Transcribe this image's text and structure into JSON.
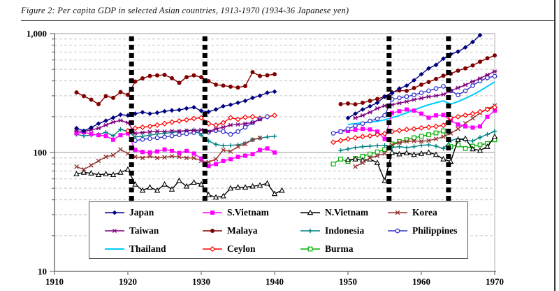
{
  "figure": {
    "title": "Figure 2: Per capita GDP in selected Asian countries, 1913-1970 (1934-36 Japanese yen)"
  },
  "chart_data": {
    "type": "line",
    "title": "Figure 2: Per capita GDP in selected Asian countries, 1913-1970 (1934-36 Japanese yen)",
    "xlabel": "",
    "ylabel": "",
    "x_axis": {
      "min": 1910,
      "max": 1970,
      "ticks": [
        1910,
        1920,
        1930,
        1940,
        1950,
        1960,
        1970
      ]
    },
    "y_axis": {
      "scale": "log",
      "min": 10,
      "max": 1000,
      "tick_values": [
        1000,
        100,
        10
      ],
      "tick_labels": [
        "1,000",
        "100",
        "10"
      ],
      "solid_line_values": [
        1000,
        100,
        10
      ],
      "minor_gridlines": [
        20,
        30,
        40,
        50,
        60,
        70,
        80,
        90,
        200,
        300,
        400,
        500,
        600,
        700,
        800,
        900
      ]
    },
    "period_break_bars": {
      "style": "thick-dashed-vertical",
      "color": "#000000",
      "years": [
        1920.5,
        1930.5,
        1955.6,
        1963.7
      ]
    },
    "legend": {
      "position": "bottom-inside",
      "rows": [
        [
          "Japan",
          "S.Vietnam",
          "N.Vietnam",
          "Korea"
        ],
        [
          "Taiwan",
          "Malaya",
          "Indonesia",
          "Philippines"
        ],
        [
          "Thailand",
          "Ceylon",
          "Burma"
        ]
      ]
    },
    "series": [
      {
        "name": "Japan",
        "color": "#000080",
        "marker": "diamond",
        "segments": [
          {
            "start_year": 1913,
            "values": [
              160,
              152,
              162,
              175,
              185,
              196,
              208,
              205,
              212,
              218,
              212,
              216,
              222,
              226,
              228,
              235,
              240,
              224,
              220,
              230,
              245,
              252,
              262,
              272,
              288,
              300,
              318,
              325
            ]
          },
          {
            "start_year": 1950,
            "values": [
              195,
              212,
              230,
              245,
              262,
              295,
              315,
              345,
              365,
              405,
              455,
              510,
              545,
              615,
              670,
              705,
              765,
              850,
              970
            ]
          }
        ]
      },
      {
        "name": "S.Vietnam",
        "color": "#FF00FF",
        "marker": "square",
        "segments": [
          {
            "start_year": 1913,
            "values": [
              145,
              148,
              143,
              140,
              138,
              128,
              140,
              145,
              105,
              101,
              100,
              102,
              106,
              103,
              99,
              103,
              98,
              89,
              77,
              80,
              85,
              88,
              92,
              94,
              97,
              105,
              108,
              100
            ]
          },
          {
            "start_year": 1949,
            "values": [
              150,
              152,
              155,
              158,
              156,
              150,
              130,
              215,
              222,
              230,
              225,
              212,
              196,
              205,
              207,
              186,
              172,
              166,
              162,
              166,
              200,
              225
            ]
          }
        ]
      },
      {
        "name": "N.Vietnam",
        "color": "#000000",
        "marker": "triangle-open",
        "segments": [
          {
            "start_year": 1913,
            "values": [
              66,
              68,
              67,
              65,
              66,
              65,
              68,
              72,
              54,
              48,
              51,
              48,
              54,
              49,
              58,
              52,
              56,
              54,
              44,
              42,
              43,
              50,
              51,
              51,
              52,
              53,
              55,
              45,
              48
            ]
          },
          {
            "start_year": 1950,
            "values": [
              87,
              88,
              86,
              88,
              82,
              58,
              100,
              97,
              99,
              96,
              98,
              100,
              96,
              88,
              84,
              128,
              131,
              107,
              104,
              112,
              136
            ]
          }
        ]
      },
      {
        "name": "Korea",
        "color": "#953735",
        "marker": "x",
        "segments": [
          {
            "start_year": 1913,
            "values": [
              76,
              72,
              78,
              85,
              92,
              95,
              106,
              98,
              92,
              90,
              93,
              90,
              91,
              93,
              92,
              90,
              90,
              85,
              83,
              88,
              105,
              102,
              112,
              118,
              128,
              133
            ]
          },
          {
            "start_year": 1951,
            "values": [
              76,
              82,
              90,
              94,
              98,
              116,
              121,
              124,
              125,
              124,
              126,
              130,
              136,
              145,
              158,
              176,
              194,
              215,
              232,
              248
            ]
          }
        ]
      },
      {
        "name": "Taiwan",
        "color": "#800080",
        "marker": "star",
        "segments": [
          {
            "start_year": 1913,
            "values": [
              152,
              150,
              155,
              160,
              170,
              180,
              186,
              178,
              145,
              147,
              149,
              151,
              150,
              152,
              151,
              153,
              153,
              155,
              150,
              158,
              163,
              170,
              172,
              175,
              178,
              190
            ]
          },
          {
            "start_year": 1951,
            "values": [
              195,
              205,
              218,
              235,
              247,
              252,
              260,
              268,
              278,
              286,
              295,
              300,
              308,
              330,
              350,
              370,
              395,
              420,
              450,
              480
            ]
          }
        ]
      },
      {
        "name": "Malaya",
        "color": "#800000",
        "marker": "circle",
        "segments": [
          {
            "start_year": 1913,
            "values": [
              320,
              298,
              278,
              255,
              298,
              288,
              322,
              305,
              395,
              420,
              440,
              445,
              450,
              422,
              385,
              430,
              445,
              430,
              398,
              372,
              365,
              358,
              352,
              362,
              474,
              440,
              446,
              455
            ]
          },
          {
            "start_year": 1949,
            "values": [
              255,
              258,
              254,
              262,
              272,
              282,
              295,
              320,
              332,
              330,
              348,
              372,
              392,
              415,
              442,
              460,
              488,
              510,
              540,
              580,
              620,
              655
            ]
          }
        ]
      },
      {
        "name": "Indonesia",
        "color": "#008080",
        "marker": "plus",
        "segments": [
          {
            "start_year": 1913,
            "values": [
              142,
              138,
              140,
              142,
              148,
              138,
              157,
              150,
              135,
              137,
              140,
              143,
              145,
              147,
              150,
              152,
              155,
              140,
              125,
              117,
              114,
              115,
              116,
              120,
              128,
              132,
              135,
              137
            ]
          },
          {
            "start_year": 1949,
            "values": [
              104,
              107,
              110,
              112,
              113,
              114,
              115,
              110,
              112,
              110,
              112,
              115,
              116,
              113,
              108,
              126,
              131,
              127,
              125,
              134,
              142,
              151
            ]
          }
        ]
      },
      {
        "name": "Philippines",
        "color": "#3333CC",
        "marker": "circle-open",
        "segments": [
          {
            "start_year": 1921,
            "values": [
              126,
              129,
              131,
              133,
              135,
              138,
              141,
              144,
              147,
              150,
              148,
              153,
              150,
              142,
              150,
              163,
              178,
              192,
              200
            ]
          },
          {
            "start_year": 1948,
            "values": [
              145,
              150,
              158,
              168,
              175,
              184,
              192,
              205,
              280,
              288,
              295,
              305,
              318,
              330,
              345,
              360,
              330,
              305,
              330,
              365,
              400,
              425,
              438
            ]
          }
        ]
      },
      {
        "name": "Thailand",
        "color": "#00CCFF",
        "marker": "none",
        "segments": [
          {
            "start_year": 1950,
            "values": [
              172,
              175,
              178,
              180,
              183,
              188,
              196,
              205,
              215,
              228,
              240,
              252,
              262,
              272,
              255,
              268,
              285,
              305,
              330,
              360,
              392
            ]
          }
        ]
      },
      {
        "name": "Ceylon",
        "color": "#FF0000",
        "marker": "diamond-open",
        "segments": [
          {
            "start_year": 1920,
            "values": [
              152,
              160,
              163,
              166,
              170,
              175,
              180,
              184,
              188,
              193,
              196,
              175,
              170,
              178,
              196,
              190,
              198,
              200,
              194,
              200,
              205
            ]
          },
          {
            "start_year": 1948,
            "values": [
              122,
              126,
              130,
              133,
              136,
              138,
              141,
              144,
              150,
              153,
              156,
              158,
              161,
              163,
              166,
              169,
              196,
              200,
              206,
              212,
              220,
              230,
              240
            ]
          }
        ]
      },
      {
        "name": "Burma",
        "color": "#00B000",
        "marker": "square-open",
        "segments": [
          {
            "start_year": 1948,
            "values": [
              80,
              88,
              84,
              89,
              93,
              97,
              101,
              106,
              118,
              124,
              128,
              133,
              137,
              141,
              146,
              152,
              112,
              116,
              108,
              113,
              116,
              119,
              128
            ]
          }
        ]
      }
    ]
  }
}
